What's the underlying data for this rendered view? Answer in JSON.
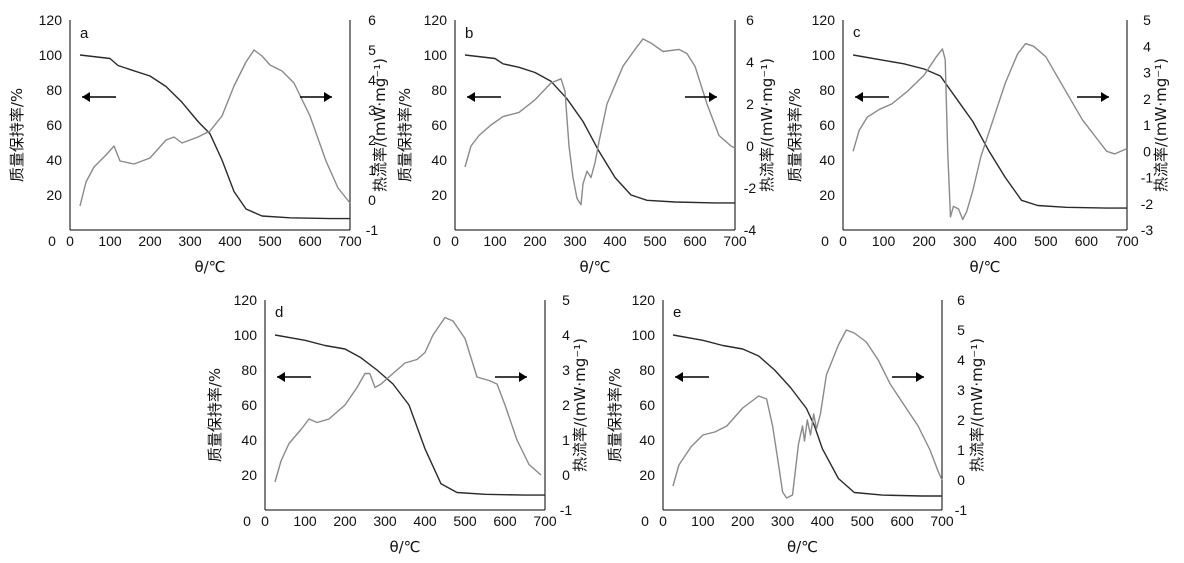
{
  "colors": {
    "tg": "#2a2a2a",
    "dsc": "#8a8a8a",
    "axis": "#000000"
  },
  "labels": {
    "y_left": "质量保持率/%",
    "y_right": "热流率/(mW·mg⁻¹)",
    "x": "θ/℃"
  },
  "chart_data": [
    {
      "type": "line",
      "panel": "a",
      "x_ticks": [
        "0",
        "100",
        "200",
        "300",
        "400",
        "500",
        "600",
        "700"
      ],
      "y_left_ticks": [
        "20",
        "40",
        "60",
        "80",
        "100",
        "120"
      ],
      "y_right_ticks": [
        "-1",
        "0",
        "1",
        "2",
        "3",
        "4",
        "5",
        "6"
      ],
      "xlim": [
        0,
        700
      ],
      "ylim_left": [
        0,
        120
      ],
      "ylim_right": [
        -1,
        6
      ],
      "arrows": [
        "left",
        "right"
      ],
      "series": [
        {
          "axis": "left",
          "points": [
            [
              25,
              100
            ],
            [
              100,
              98
            ],
            [
              120,
              94
            ],
            [
              160,
              91
            ],
            [
              200,
              88
            ],
            [
              240,
              82
            ],
            [
              280,
              73
            ],
            [
              320,
              62
            ],
            [
              350,
              55
            ],
            [
              380,
              40
            ],
            [
              410,
              22
            ],
            [
              440,
              12
            ],
            [
              480,
              8
            ],
            [
              550,
              7
            ],
            [
              650,
              6.5
            ],
            [
              700,
              6.5
            ]
          ]
        },
        {
          "axis": "right",
          "points": [
            [
              25,
              -0.2
            ],
            [
              40,
              0.6
            ],
            [
              60,
              1.1
            ],
            [
              90,
              1.5
            ],
            [
              110,
              1.8
            ],
            [
              125,
              1.3
            ],
            [
              160,
              1.2
            ],
            [
              200,
              1.4
            ],
            [
              240,
              2.0
            ],
            [
              260,
              2.1
            ],
            [
              280,
              1.9
            ],
            [
              300,
              2.0
            ],
            [
              320,
              2.1
            ],
            [
              350,
              2.3
            ],
            [
              380,
              2.8
            ],
            [
              410,
              3.8
            ],
            [
              440,
              4.6
            ],
            [
              460,
              5.0
            ],
            [
              480,
              4.8
            ],
            [
              500,
              4.5
            ],
            [
              530,
              4.3
            ],
            [
              560,
              3.9
            ],
            [
              600,
              2.8
            ],
            [
              640,
              1.3
            ],
            [
              670,
              0.4
            ],
            [
              700,
              -0.1
            ]
          ]
        }
      ]
    },
    {
      "type": "line",
      "panel": "b",
      "x_ticks": [
        "0",
        "100",
        "200",
        "300",
        "400",
        "500",
        "600",
        "700"
      ],
      "y_left_ticks": [
        "20",
        "40",
        "60",
        "80",
        "100",
        "120"
      ],
      "y_right_ticks": [
        "-4",
        "-2",
        "0",
        "2",
        "4",
        "6"
      ],
      "xlim": [
        0,
        700
      ],
      "ylim_left": [
        0,
        120
      ],
      "ylim_right": [
        -4,
        6
      ],
      "arrows": [
        "left",
        "right"
      ],
      "series": [
        {
          "axis": "left",
          "points": [
            [
              25,
              100
            ],
            [
              100,
              98
            ],
            [
              120,
              95
            ],
            [
              160,
              93
            ],
            [
              200,
              90
            ],
            [
              240,
              85
            ],
            [
              280,
              75
            ],
            [
              320,
              62
            ],
            [
              360,
              45
            ],
            [
              400,
              30
            ],
            [
              440,
              20
            ],
            [
              480,
              17
            ],
            [
              550,
              16
            ],
            [
              650,
              15.5
            ],
            [
              700,
              15.5
            ]
          ]
        },
        {
          "axis": "right",
          "points": [
            [
              25,
              -1.0
            ],
            [
              40,
              0
            ],
            [
              60,
              0.5
            ],
            [
              90,
              1
            ],
            [
              120,
              1.4
            ],
            [
              160,
              1.6
            ],
            [
              200,
              2.2
            ],
            [
              240,
              3.0
            ],
            [
              265,
              3.2
            ],
            [
              275,
              2.6
            ],
            [
              285,
              0
            ],
            [
              295,
              -1.5
            ],
            [
              305,
              -2.5
            ],
            [
              315,
              -2.8
            ],
            [
              320,
              -1.8
            ],
            [
              330,
              -1.2
            ],
            [
              340,
              -1.5
            ],
            [
              350,
              -0.8
            ],
            [
              360,
              0.2
            ],
            [
              380,
              2.0
            ],
            [
              420,
              3.8
            ],
            [
              450,
              4.6
            ],
            [
              470,
              5.1
            ],
            [
              490,
              4.9
            ],
            [
              520,
              4.5
            ],
            [
              560,
              4.6
            ],
            [
              580,
              4.4
            ],
            [
              600,
              3.8
            ],
            [
              630,
              2.0
            ],
            [
              660,
              0.5
            ],
            [
              690,
              0
            ],
            [
              700,
              -0.1
            ]
          ]
        }
      ]
    },
    {
      "type": "line",
      "panel": "c",
      "x_ticks": [
        "0",
        "100",
        "200",
        "300",
        "400",
        "500",
        "600",
        "700"
      ],
      "y_left_ticks": [
        "20",
        "40",
        "60",
        "80",
        "100",
        "120"
      ],
      "y_right_ticks": [
        "-3",
        "-2",
        "-1",
        "0",
        "1",
        "2",
        "3",
        "4",
        "5"
      ],
      "xlim": [
        0,
        700
      ],
      "ylim_left": [
        0,
        120
      ],
      "ylim_right": [
        -3,
        5
      ],
      "arrows": [
        "left",
        "right"
      ],
      "series": [
        {
          "axis": "left",
          "points": [
            [
              25,
              100
            ],
            [
              100,
              97
            ],
            [
              150,
              95
            ],
            [
              200,
              92
            ],
            [
              240,
              88
            ],
            [
              280,
              75
            ],
            [
              320,
              62
            ],
            [
              360,
              45
            ],
            [
              400,
              30
            ],
            [
              440,
              17
            ],
            [
              480,
              14
            ],
            [
              550,
              13
            ],
            [
              650,
              12.5
            ],
            [
              700,
              12.5
            ]
          ]
        },
        {
          "axis": "right",
          "points": [
            [
              25,
              0
            ],
            [
              40,
              0.8
            ],
            [
              60,
              1.3
            ],
            [
              90,
              1.6
            ],
            [
              120,
              1.8
            ],
            [
              160,
              2.3
            ],
            [
              200,
              2.9
            ],
            [
              230,
              3.6
            ],
            [
              245,
              3.9
            ],
            [
              252,
              3.5
            ],
            [
              258,
              0
            ],
            [
              265,
              -2.5
            ],
            [
              272,
              -2.1
            ],
            [
              285,
              -2.2
            ],
            [
              295,
              -2.6
            ],
            [
              305,
              -2.3
            ],
            [
              320,
              -1.5
            ],
            [
              340,
              -0.2
            ],
            [
              370,
              1.2
            ],
            [
              400,
              2.6
            ],
            [
              430,
              3.7
            ],
            [
              450,
              4.1
            ],
            [
              470,
              4.0
            ],
            [
              500,
              3.6
            ],
            [
              530,
              2.8
            ],
            [
              560,
              2.0
            ],
            [
              590,
              1.2
            ],
            [
              620,
              0.6
            ],
            [
              650,
              0.0
            ],
            [
              670,
              -0.1
            ],
            [
              700,
              0.1
            ]
          ]
        }
      ]
    },
    {
      "type": "line",
      "panel": "d",
      "x_ticks": [
        "0",
        "100",
        "200",
        "300",
        "400",
        "500",
        "600",
        "700"
      ],
      "y_left_ticks": [
        "20",
        "40",
        "60",
        "80",
        "100",
        "120"
      ],
      "y_right_ticks": [
        "-1",
        "0",
        "1",
        "2",
        "3",
        "4",
        "5"
      ],
      "xlim": [
        0,
        700
      ],
      "ylim_left": [
        0,
        120
      ],
      "ylim_right": [
        -1,
        5
      ],
      "arrows": [
        "left",
        "right"
      ],
      "series": [
        {
          "axis": "left",
          "points": [
            [
              25,
              100
            ],
            [
              100,
              97
            ],
            [
              150,
              94
            ],
            [
              200,
              92
            ],
            [
              240,
              87
            ],
            [
              280,
              80
            ],
            [
              320,
              72
            ],
            [
              360,
              60
            ],
            [
              400,
              35
            ],
            [
              440,
              15
            ],
            [
              480,
              10
            ],
            [
              550,
              9
            ],
            [
              650,
              8.5
            ],
            [
              700,
              8.5
            ]
          ]
        },
        {
          "axis": "right",
          "points": [
            [
              25,
              -0.2
            ],
            [
              40,
              0.4
            ],
            [
              60,
              0.9
            ],
            [
              90,
              1.3
            ],
            [
              110,
              1.6
            ],
            [
              130,
              1.5
            ],
            [
              160,
              1.6
            ],
            [
              200,
              2.0
            ],
            [
              230,
              2.5
            ],
            [
              250,
              2.9
            ],
            [
              262,
              2.9
            ],
            [
              275,
              2.5
            ],
            [
              290,
              2.6
            ],
            [
              320,
              2.9
            ],
            [
              350,
              3.2
            ],
            [
              380,
              3.3
            ],
            [
              400,
              3.5
            ],
            [
              420,
              4.0
            ],
            [
              450,
              4.5
            ],
            [
              470,
              4.4
            ],
            [
              500,
              3.9
            ],
            [
              530,
              2.8
            ],
            [
              560,
              2.7
            ],
            [
              580,
              2.6
            ],
            [
              600,
              2.0
            ],
            [
              630,
              1.0
            ],
            [
              660,
              0.3
            ],
            [
              690,
              0
            ]
          ]
        }
      ]
    },
    {
      "type": "line",
      "panel": "e",
      "x_ticks": [
        "0",
        "100",
        "200",
        "300",
        "400",
        "500",
        "600",
        "700"
      ],
      "y_left_ticks": [
        "20",
        "40",
        "60",
        "80",
        "100",
        "120"
      ],
      "y_right_ticks": [
        "-1",
        "0",
        "1",
        "2",
        "3",
        "4",
        "5",
        "6"
      ],
      "xlim": [
        0,
        700
      ],
      "ylim_left": [
        0,
        120
      ],
      "ylim_right": [
        -1,
        6
      ],
      "arrows": [
        "left",
        "right"
      ],
      "series": [
        {
          "axis": "left",
          "points": [
            [
              25,
              100
            ],
            [
              100,
              97
            ],
            [
              150,
              94
            ],
            [
              200,
              92
            ],
            [
              240,
              88
            ],
            [
              280,
              80
            ],
            [
              320,
              70
            ],
            [
              360,
              58
            ],
            [
              380,
              48
            ],
            [
              400,
              35
            ],
            [
              440,
              18
            ],
            [
              480,
              10
            ],
            [
              550,
              8.5
            ],
            [
              650,
              8
            ],
            [
              700,
              8
            ]
          ]
        },
        {
          "axis": "right",
          "points": [
            [
              25,
              -0.2
            ],
            [
              40,
              0.5
            ],
            [
              70,
              1.1
            ],
            [
              100,
              1.5
            ],
            [
              130,
              1.6
            ],
            [
              160,
              1.8
            ],
            [
              200,
              2.4
            ],
            [
              240,
              2.8
            ],
            [
              260,
              2.7
            ],
            [
              275,
              1.8
            ],
            [
              290,
              0.5
            ],
            [
              300,
              -0.4
            ],
            [
              310,
              -0.6
            ],
            [
              325,
              -0.5
            ],
            [
              340,
              1.2
            ],
            [
              350,
              1.8
            ],
            [
              355,
              1.3
            ],
            [
              362,
              2.0
            ],
            [
              370,
              1.5
            ],
            [
              378,
              2.2
            ],
            [
              385,
              1.7
            ],
            [
              395,
              2.2
            ],
            [
              410,
              3.5
            ],
            [
              440,
              4.5
            ],
            [
              460,
              5.0
            ],
            [
              480,
              4.9
            ],
            [
              510,
              4.6
            ],
            [
              540,
              4.0
            ],
            [
              570,
              3.2
            ],
            [
              600,
              2.6
            ],
            [
              640,
              1.8
            ],
            [
              670,
              1.0
            ],
            [
              690,
              0.3
            ],
            [
              700,
              0
            ]
          ]
        }
      ]
    }
  ]
}
